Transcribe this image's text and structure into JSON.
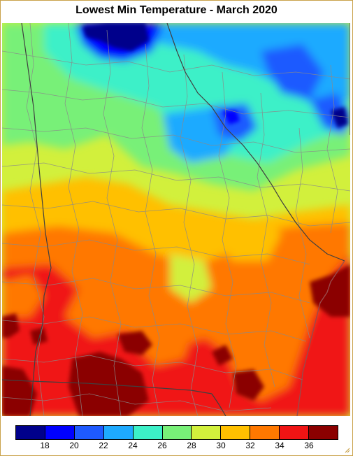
{
  "title": "Lowest Min Temperature - March 2020",
  "legend": {
    "colors": [
      "#00008b",
      "#0000ff",
      "#1e5aff",
      "#1eaaff",
      "#3cf0c8",
      "#78f078",
      "#d2f03c",
      "#ffc000",
      "#ff7800",
      "#f01414",
      "#8b0000"
    ],
    "ticks": [
      "18",
      "20",
      "22",
      "24",
      "26",
      "28",
      "30",
      "32",
      "34",
      "36"
    ]
  }
}
